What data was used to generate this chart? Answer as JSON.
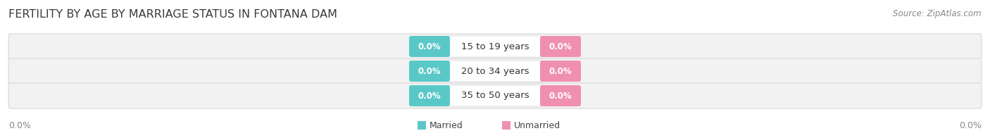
{
  "title": "FERTILITY BY AGE BY MARRIAGE STATUS IN FONTANA DAM",
  "source": "Source: ZipAtlas.com",
  "categories": [
    "15 to 19 years",
    "20 to 34 years",
    "35 to 50 years"
  ],
  "married_values": [
    "0.0%",
    "0.0%",
    "0.0%"
  ],
  "unmarried_values": [
    "0.0%",
    "0.0%",
    "0.0%"
  ],
  "married_color": "#5bc8c8",
  "unmarried_color": "#f090b0",
  "bar_bg_color": "#f2f2f2",
  "bar_outline_color": "#d8d8d8",
  "pill_bg_color": "#ffffff",
  "title_fontsize": 11.5,
  "source_fontsize": 8.5,
  "tick_fontsize": 9,
  "category_fontsize": 9.5,
  "badge_fontsize": 8.5,
  "left_tick": "0.0%",
  "right_tick": "0.0%",
  "background_color": "#ffffff",
  "legend_married": "Married",
  "legend_unmarried": "Unmarried",
  "legend_fontsize": 9
}
